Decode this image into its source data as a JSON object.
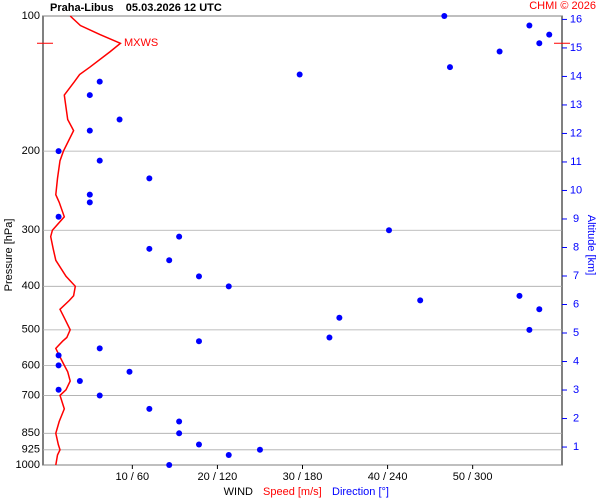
{
  "chart_data": {
    "type": "profile",
    "title": "Praha-Libus    05.03.2026 12 UTC",
    "credit": "CHMI © 2026",
    "ylabel": "Pressure [hPa]",
    "y2label": "Altitude [km]",
    "xlabel": "WIND",
    "ylog": true,
    "ylim": [
      1000,
      100
    ],
    "yticks": [
      100,
      200,
      300,
      400,
      500,
      600,
      700,
      850,
      925,
      1000
    ],
    "y2lim": [
      0.37,
      16.12
    ],
    "y2ticks": [
      1,
      2,
      3,
      4,
      5,
      6,
      7,
      8,
      9,
      10,
      11,
      12,
      13,
      14,
      15,
      16
    ],
    "xlim": [
      -0.5,
      60.5
    ],
    "x2lim": [
      -3,
      363
    ],
    "xticks": [
      {
        "value": 10,
        "label": "10 / 60"
      },
      {
        "value": 20,
        "label": "20 / 120"
      },
      {
        "value": 30,
        "label": "30 / 180"
      },
      {
        "value": 40,
        "label": "40 / 240"
      },
      {
        "value": 50,
        "label": "50 / 300"
      }
    ],
    "annotation": {
      "text": "MXWS",
      "pressure": 115
    },
    "pressure": [
      1000,
      950,
      925,
      900,
      850,
      800,
      750,
      700,
      680,
      650,
      620,
      600,
      570,
      550,
      530,
      520,
      500,
      470,
      450,
      430,
      420,
      400,
      380,
      350,
      330,
      310,
      300,
      280,
      260,
      250,
      230,
      210,
      200,
      180,
      170,
      150,
      140,
      135,
      130,
      120,
      115,
      110,
      105,
      100
    ],
    "series": [
      {
        "name": "Speed [m/s]",
        "color": "#ff0000",
        "values": [
          1,
          1.2,
          1.5,
          1.3,
          1,
          1.4,
          2,
          1.5,
          2.2,
          2.7,
          2.4,
          2,
          1.4,
          1,
          1.8,
          2.3,
          2.7,
          2,
          1.5,
          2.6,
          3.1,
          3.3,
          2.2,
          1,
          0.7,
          0.4,
          0.6,
          2,
          1.4,
          1,
          1.2,
          1.5,
          1.9,
          3.1,
          2.4,
          2,
          3.2,
          3.8,
          5,
          7.4,
          8.6,
          6.2,
          3.9,
          2.7
        ]
      },
      {
        "name": "Direction [°]",
        "color": "#0000ff",
        "axis": "x2",
        "values": [
          86,
          128,
          150,
          107,
          93,
          93,
          72,
          37,
          8,
          23,
          58,
          8,
          8,
          37,
          107,
          199,
          340,
          206,
          347,
          263,
          333,
          128,
          107,
          86,
          72,
          93,
          241,
          8,
          30,
          30,
          72,
          37,
          8,
          30,
          51,
          30,
          37,
          178,
          284,
          319,
          347,
          354,
          340,
          280
        ]
      }
    ]
  }
}
